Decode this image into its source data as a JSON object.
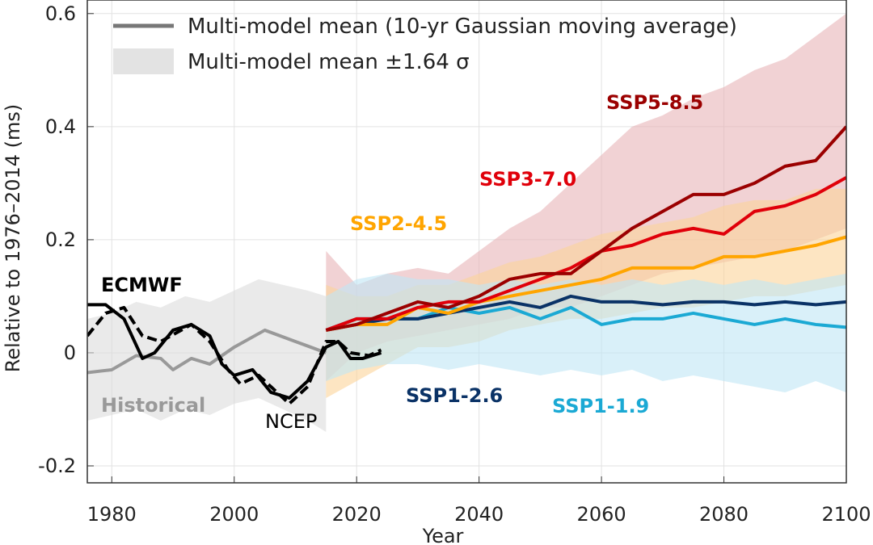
{
  "chart_data": {
    "type": "line",
    "xlabel": "Year",
    "ylabel": "Relative to 1976–2014 (ms)",
    "xlim": [
      1976,
      2100
    ],
    "ylim": [
      -0.23,
      0.624
    ],
    "xticks": [
      1980,
      2000,
      2020,
      2040,
      2060,
      2080,
      2100
    ],
    "yticks": [
      -0.2,
      0,
      0.2,
      0.4,
      0.6
    ],
    "grid": true,
    "legend": [
      {
        "label": "Multi-model mean (10-yr Gaussian moving average)",
        "kind": "line",
        "color": "#777777"
      },
      {
        "label": "Multi-model mean ±1.64 σ",
        "kind": "band",
        "color": "#e3e3e3"
      }
    ],
    "bands": [
      {
        "color": "#dcdcdc",
        "x": [
          1976,
          1980,
          1984,
          1988,
          1992,
          1996,
          2000,
          2004,
          2008,
          2012,
          2015
        ],
        "lower": [
          -0.12,
          -0.11,
          -0.1,
          -0.12,
          -0.1,
          -0.11,
          -0.09,
          -0.08,
          -0.1,
          -0.12,
          -0.14
        ],
        "upper": [
          0.06,
          0.07,
          0.09,
          0.08,
          0.1,
          0.09,
          0.11,
          0.13,
          0.12,
          0.11,
          0.1
        ]
      },
      {
        "color": "#e8b4b8",
        "x": [
          2015,
          2020,
          2025,
          2030,
          2035,
          2040,
          2045,
          2050,
          2055,
          2060,
          2065,
          2070,
          2075,
          2080,
          2085,
          2090,
          2095,
          2100
        ],
        "lower": [
          -0.05,
          0,
          0.02,
          0.03,
          0.04,
          0.05,
          0.06,
          0.08,
          0.08,
          0.1,
          0.12,
          0.14,
          0.15,
          0.16,
          0.17,
          0.18,
          0.2,
          0.22
        ],
        "upper": [
          0.18,
          0.12,
          0.14,
          0.15,
          0.14,
          0.18,
          0.22,
          0.25,
          0.3,
          0.35,
          0.4,
          0.42,
          0.45,
          0.47,
          0.5,
          0.52,
          0.56,
          0.6
        ]
      },
      {
        "color": "#fcd49a",
        "x": [
          2015,
          2020,
          2025,
          2030,
          2035,
          2040,
          2045,
          2050,
          2055,
          2060,
          2065,
          2070,
          2075,
          2080,
          2085,
          2090,
          2095,
          2100
        ],
        "lower": [
          -0.08,
          -0.05,
          -0.02,
          0.01,
          0.01,
          0.02,
          0.04,
          0.05,
          0.06,
          0.06,
          0.07,
          0.08,
          0.08,
          0.09,
          0.1,
          0.1,
          0.11,
          0.12
        ],
        "upper": [
          0.12,
          0.1,
          0.1,
          0.12,
          0.12,
          0.14,
          0.16,
          0.17,
          0.19,
          0.21,
          0.22,
          0.23,
          0.24,
          0.26,
          0.27,
          0.27,
          0.29,
          0.29
        ]
      },
      {
        "color": "#bfe6f5",
        "x": [
          2015,
          2020,
          2025,
          2030,
          2035,
          2040,
          2045,
          2050,
          2055,
          2060,
          2065,
          2070,
          2075,
          2080,
          2085,
          2090,
          2095,
          2100
        ],
        "lower": [
          -0.05,
          -0.03,
          -0.02,
          -0.02,
          -0.03,
          -0.02,
          -0.03,
          -0.04,
          -0.03,
          -0.04,
          -0.03,
          -0.05,
          -0.04,
          -0.05,
          -0.06,
          -0.07,
          -0.05,
          -0.07
        ],
        "upper": [
          0.1,
          0.13,
          0.14,
          0.13,
          0.13,
          0.12,
          0.13,
          0.12,
          0.13,
          0.12,
          0.13,
          0.12,
          0.13,
          0.12,
          0.13,
          0.12,
          0.13,
          0.14
        ]
      }
    ],
    "series": [
      {
        "name": "Historical",
        "color": "#999999",
        "dashed": false,
        "x": [
          1976,
          1980,
          1984,
          1988,
          1990,
          1993,
          1996,
          2000,
          2005,
          2010,
          2015
        ],
        "values": [
          -0.035,
          -0.03,
          -0.005,
          -0.01,
          -0.03,
          -0.01,
          -0.02,
          0.01,
          0.04,
          0.02,
          0.0
        ]
      },
      {
        "name": "ECMWF",
        "color": "#000000",
        "dashed": false,
        "x": [
          1976,
          1979,
          1982,
          1985,
          1987,
          1990,
          1993,
          1996,
          1998,
          2000,
          2003,
          2006,
          2009,
          2012,
          2015,
          2017,
          2019,
          2021,
          2024
        ],
        "values": [
          0.085,
          0.085,
          0.06,
          -0.01,
          0.0,
          0.04,
          0.05,
          0.03,
          -0.02,
          -0.04,
          -0.03,
          -0.07,
          -0.08,
          -0.05,
          0.01,
          0.02,
          -0.01,
          -0.01,
          0.0
        ]
      },
      {
        "name": "NCEP",
        "color": "#000000",
        "dashed": true,
        "x": [
          1976,
          1979,
          1982,
          1985,
          1988,
          1993,
          1996,
          1999,
          2001,
          2004,
          2006,
          2009,
          2012,
          2015,
          2017,
          2019,
          2022,
          2024
        ],
        "values": [
          0.03,
          0.07,
          0.08,
          0.03,
          0.02,
          0.05,
          0.02,
          -0.03,
          -0.055,
          -0.04,
          -0.06,
          -0.09,
          -0.06,
          0.02,
          0.02,
          0.0,
          -0.005,
          0.005
        ]
      },
      {
        "name": "SSP1-1.9",
        "color": "#1ba9d4",
        "dashed": false,
        "x": [
          2015,
          2020,
          2025,
          2030,
          2035,
          2040,
          2045,
          2050,
          2055,
          2060,
          2065,
          2070,
          2075,
          2080,
          2085,
          2090,
          2095,
          2100
        ],
        "values": [
          0.04,
          0.06,
          0.06,
          0.06,
          0.08,
          0.07,
          0.08,
          0.06,
          0.08,
          0.05,
          0.06,
          0.06,
          0.07,
          0.06,
          0.05,
          0.06,
          0.05,
          0.045
        ]
      },
      {
        "name": "SSP1-2.6",
        "color": "#0a3266",
        "dashed": false,
        "x": [
          2015,
          2020,
          2025,
          2030,
          2035,
          2040,
          2045,
          2050,
          2055,
          2060,
          2065,
          2070,
          2075,
          2080,
          2085,
          2090,
          2095,
          2100
        ],
        "values": [
          0.04,
          0.05,
          0.06,
          0.06,
          0.07,
          0.08,
          0.09,
          0.08,
          0.1,
          0.09,
          0.09,
          0.085,
          0.09,
          0.09,
          0.085,
          0.09,
          0.085,
          0.09
        ]
      },
      {
        "name": "SSP2-4.5",
        "color": "#ffa500",
        "dashed": false,
        "x": [
          2015,
          2020,
          2025,
          2030,
          2035,
          2040,
          2045,
          2050,
          2055,
          2060,
          2065,
          2070,
          2075,
          2080,
          2085,
          2090,
          2095,
          2100
        ],
        "values": [
          0.04,
          0.05,
          0.05,
          0.08,
          0.07,
          0.09,
          0.1,
          0.11,
          0.12,
          0.13,
          0.15,
          0.15,
          0.15,
          0.17,
          0.17,
          0.18,
          0.19,
          0.205
        ]
      },
      {
        "name": "SSP3-7.0",
        "color": "#e0000a",
        "dashed": false,
        "x": [
          2015,
          2020,
          2025,
          2030,
          2035,
          2040,
          2045,
          2050,
          2055,
          2060,
          2065,
          2070,
          2075,
          2080,
          2085,
          2090,
          2095,
          2100
        ],
        "values": [
          0.04,
          0.06,
          0.06,
          0.08,
          0.09,
          0.09,
          0.11,
          0.13,
          0.15,
          0.18,
          0.19,
          0.21,
          0.22,
          0.21,
          0.25,
          0.26,
          0.28,
          0.31
        ]
      },
      {
        "name": "SSP5-8.5",
        "color": "#9b0000",
        "dashed": false,
        "x": [
          2015,
          2020,
          2025,
          2030,
          2035,
          2040,
          2045,
          2050,
          2055,
          2060,
          2065,
          2070,
          2075,
          2080,
          2085,
          2090,
          2095,
          2100
        ],
        "values": [
          0.04,
          0.05,
          0.07,
          0.09,
          0.08,
          0.1,
          0.13,
          0.14,
          0.14,
          0.18,
          0.22,
          0.25,
          0.28,
          0.28,
          0.3,
          0.33,
          0.34,
          0.4
        ]
      }
    ]
  }
}
